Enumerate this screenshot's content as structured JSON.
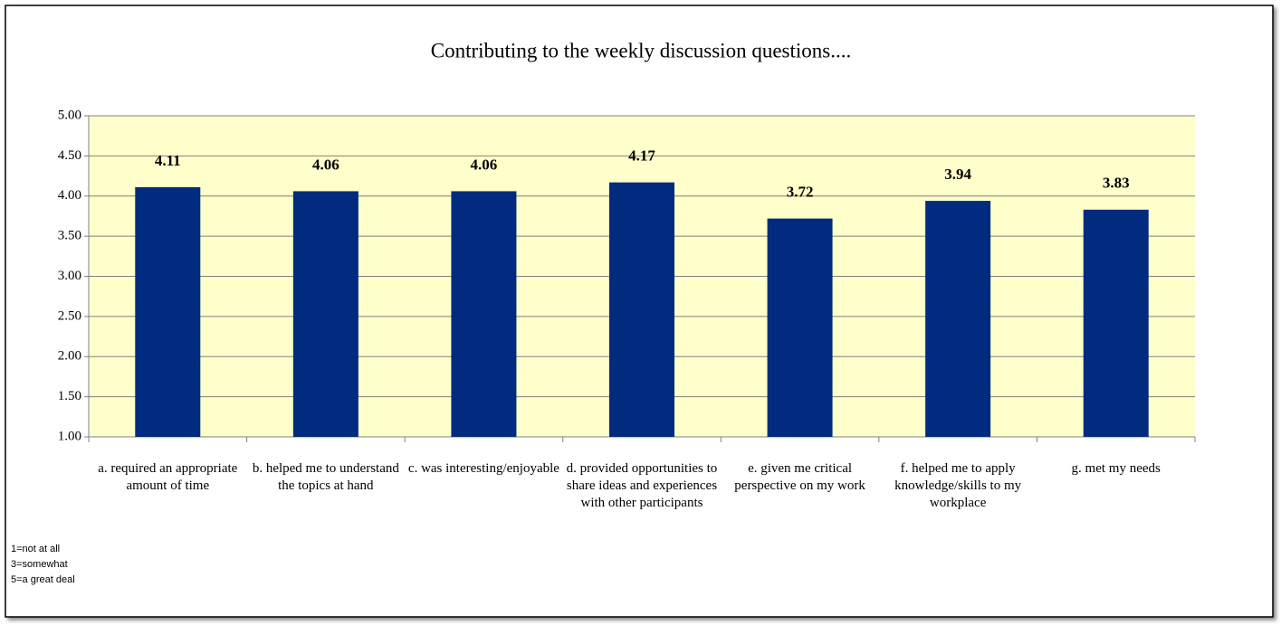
{
  "chart_data": {
    "type": "bar",
    "title": "Contributing to the weekly discussion questions....",
    "categories": [
      "a. required an appropriate amount of time",
      "b. helped me to understand the topics at hand",
      "c. was interesting/enjoyable",
      "d. provided opportunities to share ideas and experiences with other participants",
      "e. given me critical perspective on my work",
      "f. helped me to apply knowledge/skills to my workplace",
      "g. met my needs"
    ],
    "values": [
      4.11,
      4.06,
      4.06,
      4.17,
      3.72,
      3.94,
      3.83
    ],
    "color": "#002b7f",
    "ylim": [
      1,
      5
    ],
    "yticks": [
      {
        "value": 1,
        "label": "1.00"
      },
      {
        "value": 1.5,
        "label": "1.50"
      },
      {
        "value": 2,
        "label": "2.00"
      },
      {
        "value": 2.5,
        "label": "2.50"
      },
      {
        "value": 3,
        "label": "3.00"
      },
      {
        "value": 3.5,
        "label": "3.50"
      },
      {
        "value": 4,
        "label": "4.00"
      },
      {
        "value": 4.5,
        "label": "4.50"
      },
      {
        "value": 5,
        "label": "5.00"
      }
    ],
    "grid": true,
    "plot_background": "#ffffcc",
    "notes": [
      "1=not at all",
      "3=somewhat",
      "5=a great deal"
    ]
  }
}
